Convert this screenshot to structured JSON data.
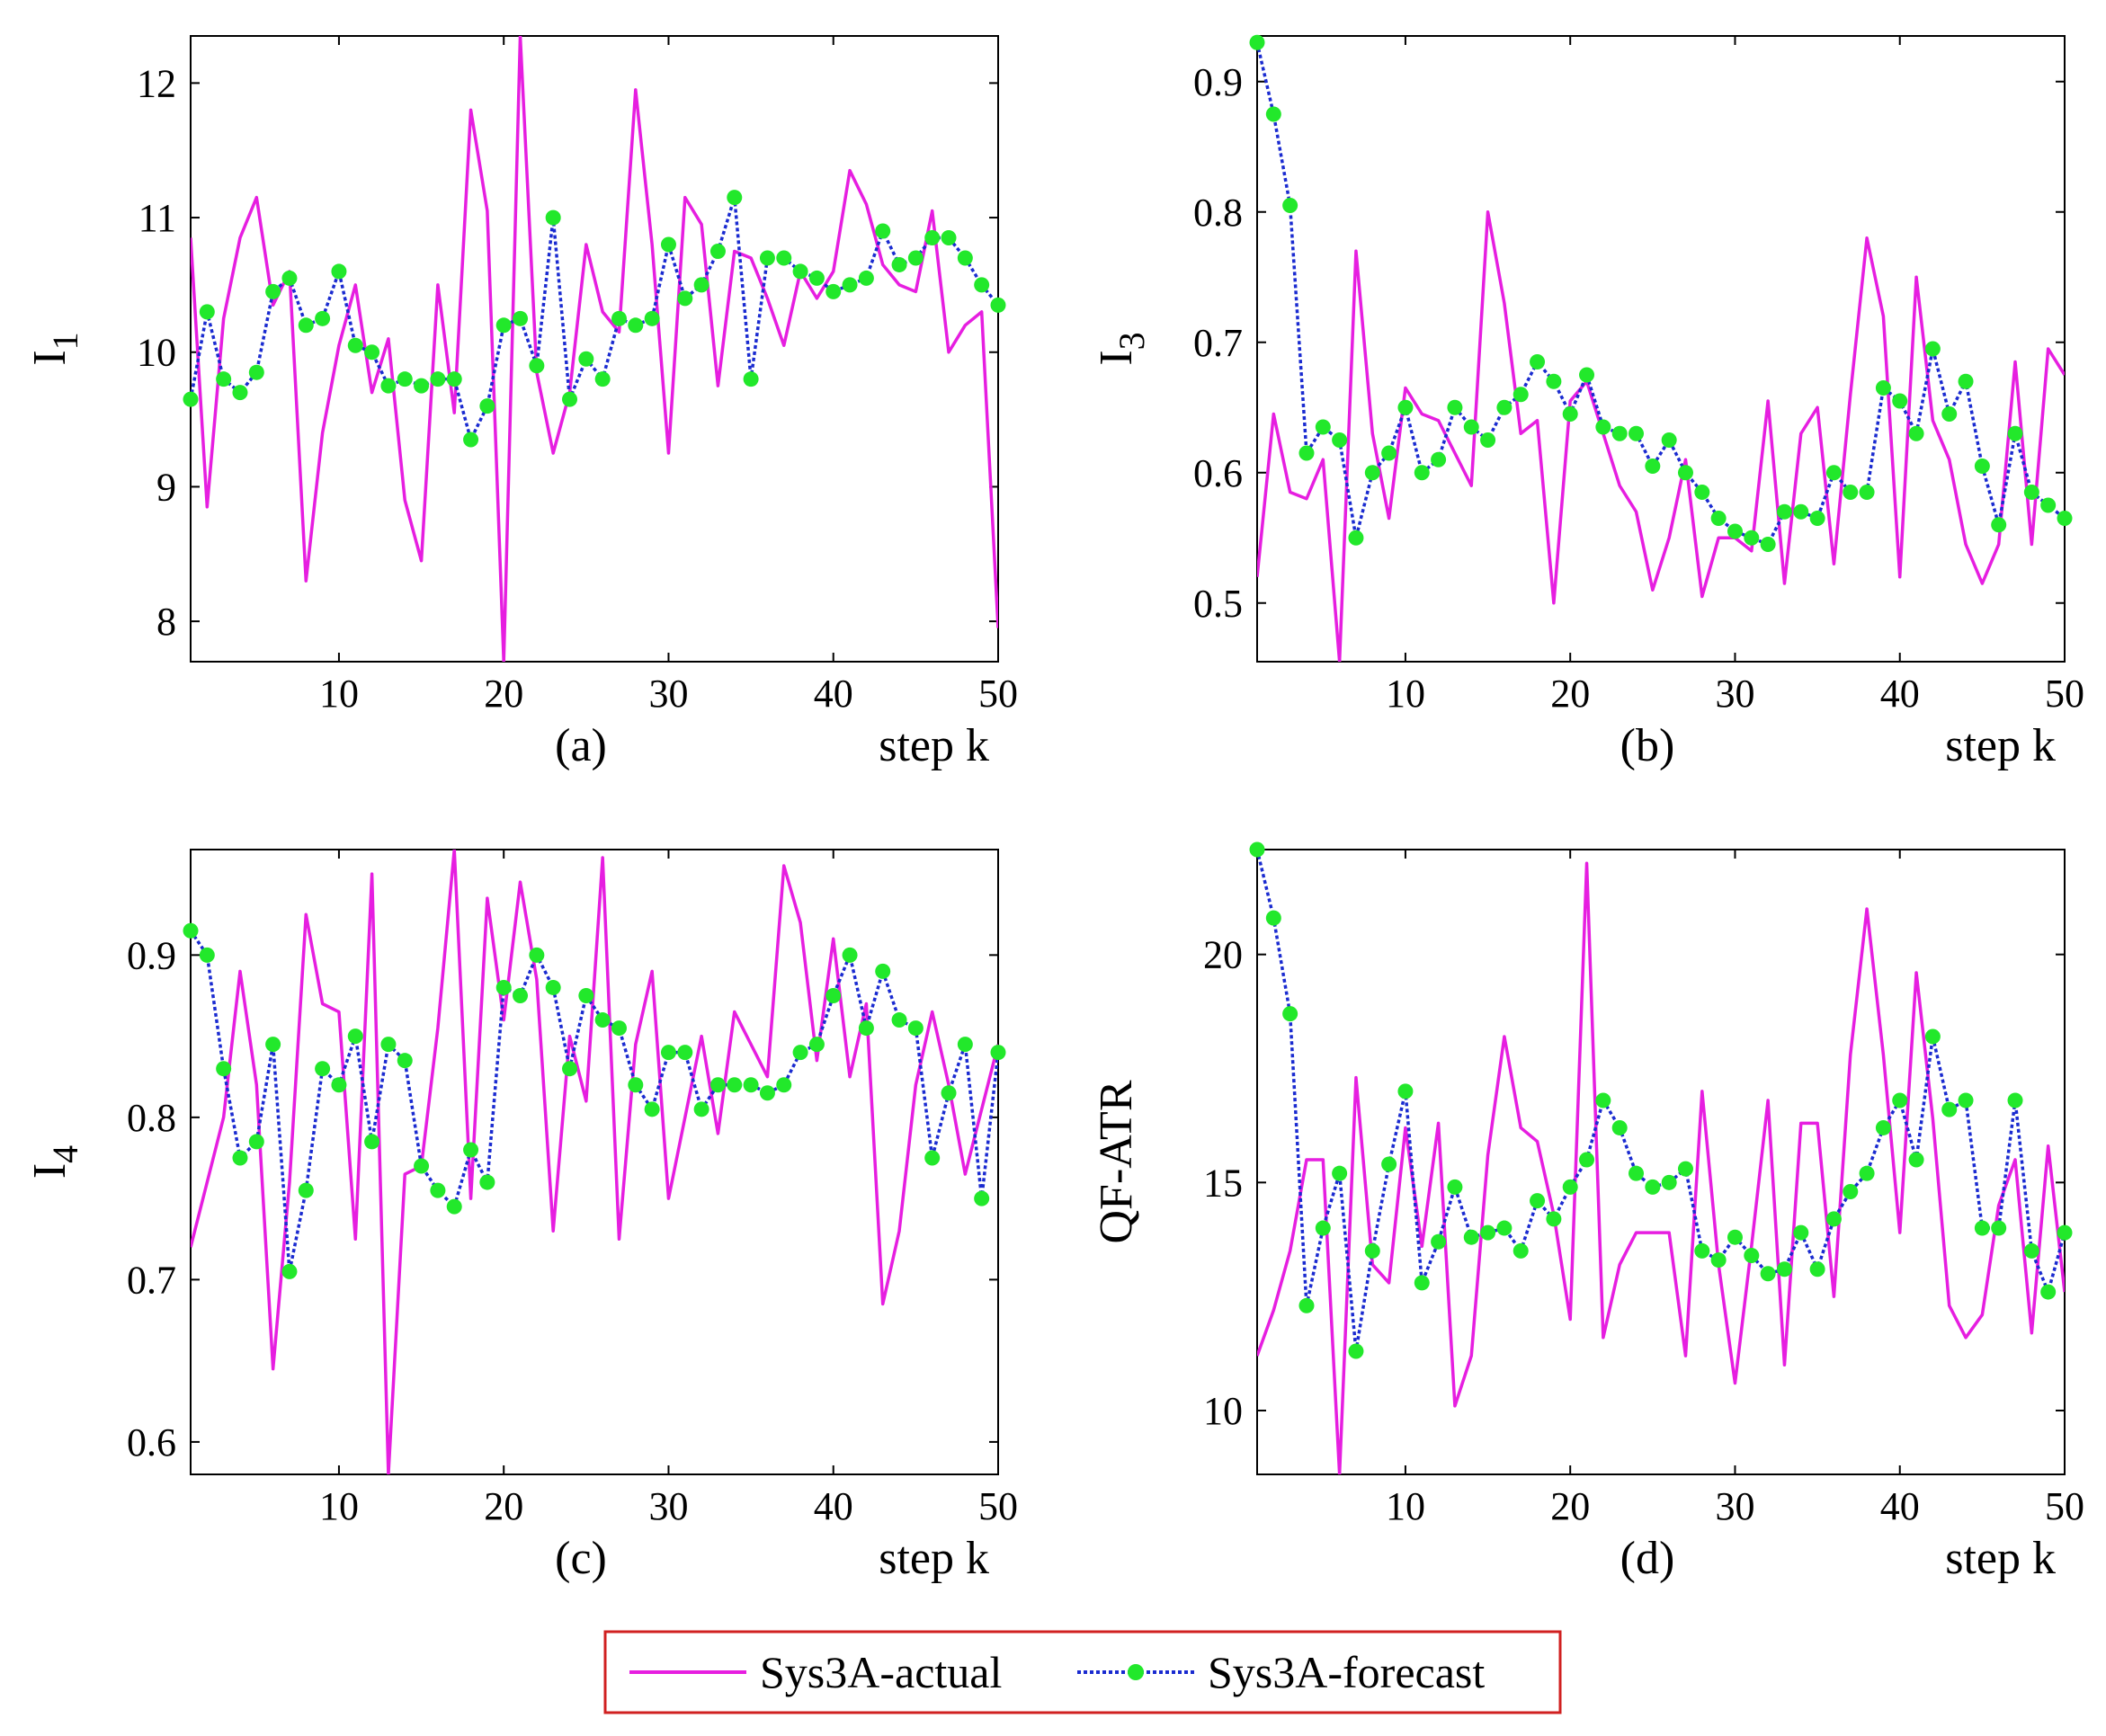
{
  "colors": {
    "actual": "#e61ee0",
    "forecast": "#1a2bd0",
    "marker_fill": "#22e82b",
    "legend_border": "#d02020",
    "axes": "#000000"
  },
  "legend": {
    "actual_label": "Sys3A-actual",
    "forecast_label": "Sys3A-forecast"
  },
  "chart_data": [
    {
      "id": "a",
      "type": "line",
      "caption": "(a)",
      "xlabel": "step k",
      "ylabel": "I",
      "ylabel_sub": "1",
      "xlim": [
        1,
        50
      ],
      "ylim": [
        7.7,
        12.35
      ],
      "xticks": [
        10,
        20,
        30,
        40,
        50
      ],
      "yticks": [
        8,
        9,
        10,
        11,
        12
      ],
      "x": [
        1,
        2,
        3,
        4,
        5,
        6,
        7,
        8,
        9,
        10,
        11,
        12,
        13,
        14,
        15,
        16,
        17,
        18,
        19,
        20,
        21,
        22,
        23,
        24,
        25,
        26,
        27,
        28,
        29,
        30,
        31,
        32,
        33,
        34,
        35,
        36,
        37,
        38,
        39,
        40,
        41,
        42,
        43,
        44,
        45,
        46,
        47,
        48,
        49,
        50
      ],
      "series": [
        {
          "name": "Sys3A-actual",
          "values": [
            10.85,
            8.85,
            10.25,
            10.85,
            11.15,
            10.35,
            10.6,
            8.3,
            9.4,
            10.05,
            10.5,
            9.7,
            10.1,
            8.9,
            8.45,
            10.5,
            9.55,
            11.8,
            11.05,
            7.7,
            12.35,
            9.85,
            9.25,
            9.7,
            10.8,
            10.3,
            10.15,
            11.95,
            10.8,
            9.25,
            11.15,
            10.95,
            9.75,
            10.75,
            10.7,
            10.4,
            10.05,
            10.6,
            10.4,
            10.6,
            11.35,
            11.1,
            10.65,
            10.5,
            10.45,
            11.05,
            10.0,
            10.2,
            10.3,
            7.95
          ]
        },
        {
          "name": "Sys3A-forecast",
          "values": [
            9.65,
            10.3,
            9.8,
            9.7,
            9.85,
            10.45,
            10.55,
            10.2,
            10.25,
            10.6,
            10.05,
            10.0,
            9.75,
            9.8,
            9.75,
            9.8,
            9.8,
            9.35,
            9.6,
            10.2,
            10.25,
            9.9,
            11.0,
            9.65,
            9.95,
            9.8,
            10.25,
            10.2,
            10.25,
            10.8,
            10.4,
            10.5,
            10.75,
            11.15,
            9.8,
            10.7,
            10.7,
            10.6,
            10.55,
            10.45,
            10.5,
            10.55,
            10.9,
            10.65,
            10.7,
            10.85,
            10.85,
            10.7,
            10.5,
            10.35
          ]
        }
      ]
    },
    {
      "id": "b",
      "type": "line",
      "caption": "(b)",
      "xlabel": "step k",
      "ylabel": "I",
      "ylabel_sub": "3",
      "xlim": [
        1,
        50
      ],
      "ylim": [
        0.455,
        0.935
      ],
      "xticks": [
        10,
        20,
        30,
        40,
        50
      ],
      "yticks": [
        0.5,
        0.6,
        0.7,
        0.8,
        0.9
      ],
      "x": [
        1,
        2,
        3,
        4,
        5,
        6,
        7,
        8,
        9,
        10,
        11,
        12,
        13,
        14,
        15,
        16,
        17,
        18,
        19,
        20,
        21,
        22,
        23,
        24,
        25,
        26,
        27,
        28,
        29,
        30,
        31,
        32,
        33,
        34,
        35,
        36,
        37,
        38,
        39,
        40,
        41,
        42,
        43,
        44,
        45,
        46,
        47,
        48,
        49,
        50
      ],
      "series": [
        {
          "name": "Sys3A-actual",
          "values": [
            0.52,
            0.645,
            0.585,
            0.58,
            0.61,
            0.455,
            0.77,
            0.63,
            0.565,
            0.665,
            0.645,
            0.64,
            0.615,
            0.59,
            0.8,
            0.73,
            0.63,
            0.64,
            0.5,
            0.655,
            0.67,
            0.63,
            0.59,
            0.57,
            0.51,
            0.55,
            0.61,
            0.505,
            0.55,
            0.55,
            0.54,
            0.655,
            0.515,
            0.63,
            0.65,
            0.53,
            0.66,
            0.78,
            0.72,
            0.52,
            0.75,
            0.64,
            0.61,
            0.545,
            0.515,
            0.545,
            0.685,
            0.545,
            0.695,
            0.675
          ]
        },
        {
          "name": "Sys3A-forecast",
          "values": [
            0.93,
            0.875,
            0.805,
            0.615,
            0.635,
            0.625,
            0.55,
            0.6,
            0.615,
            0.65,
            0.6,
            0.61,
            0.65,
            0.635,
            0.625,
            0.65,
            0.66,
            0.685,
            0.67,
            0.645,
            0.675,
            0.635,
            0.63,
            0.63,
            0.605,
            0.625,
            0.6,
            0.585,
            0.565,
            0.555,
            0.55,
            0.545,
            0.57,
            0.57,
            0.565,
            0.6,
            0.585,
            0.585,
            0.665,
            0.655,
            0.63,
            0.695,
            0.645,
            0.67,
            0.605,
            0.56,
            0.63,
            0.585,
            0.575,
            0.565
          ]
        }
      ]
    },
    {
      "id": "c",
      "type": "line",
      "caption": "(c)",
      "xlabel": "step k",
      "ylabel": "I",
      "ylabel_sub": "4",
      "xlim": [
        1,
        50
      ],
      "ylim": [
        0.58,
        0.965
      ],
      "xticks": [
        10,
        20,
        30,
        40,
        50
      ],
      "yticks": [
        0.6,
        0.7,
        0.8,
        0.9
      ],
      "x": [
        1,
        2,
        3,
        4,
        5,
        6,
        7,
        8,
        9,
        10,
        11,
        12,
        13,
        14,
        15,
        16,
        17,
        18,
        19,
        20,
        21,
        22,
        23,
        24,
        25,
        26,
        27,
        28,
        29,
        30,
        31,
        32,
        33,
        34,
        35,
        36,
        37,
        38,
        39,
        40,
        41,
        42,
        43,
        44,
        45,
        46,
        47,
        48,
        49,
        50
      ],
      "series": [
        {
          "name": "Sys3A-actual",
          "values": [
            0.72,
            0.76,
            0.8,
            0.89,
            0.82,
            0.645,
            0.76,
            0.925,
            0.87,
            0.865,
            0.725,
            0.95,
            0.58,
            0.765,
            0.77,
            0.855,
            0.965,
            0.75,
            0.935,
            0.86,
            0.945,
            0.885,
            0.73,
            0.85,
            0.81,
            0.96,
            0.725,
            0.845,
            0.89,
            0.75,
            0.8,
            0.85,
            0.79,
            0.865,
            0.845,
            0.825,
            0.955,
            0.92,
            0.835,
            0.91,
            0.825,
            0.87,
            0.685,
            0.73,
            0.82,
            0.865,
            0.82,
            0.765,
            0.805,
            0.845
          ]
        },
        {
          "name": "Sys3A-forecast",
          "values": [
            0.915,
            0.9,
            0.83,
            0.775,
            0.785,
            0.845,
            0.705,
            0.755,
            0.83,
            0.82,
            0.85,
            0.785,
            0.845,
            0.835,
            0.77,
            0.755,
            0.745,
            0.78,
            0.76,
            0.88,
            0.875,
            0.9,
            0.88,
            0.83,
            0.875,
            0.86,
            0.855,
            0.82,
            0.805,
            0.84,
            0.84,
            0.805,
            0.82,
            0.82,
            0.82,
            0.815,
            0.82,
            0.84,
            0.845,
            0.875,
            0.9,
            0.855,
            0.89,
            0.86,
            0.855,
            0.775,
            0.815,
            0.845,
            0.75,
            0.84
          ]
        }
      ]
    },
    {
      "id": "d",
      "type": "line",
      "caption": "(d)",
      "xlabel": "step k",
      "ylabel": "QF-ATR",
      "ylabel_sub": "",
      "xlim": [
        1,
        50
      ],
      "ylim": [
        8.6,
        22.3
      ],
      "xticks": [
        10,
        20,
        30,
        40,
        50
      ],
      "yticks": [
        10,
        15,
        20
      ],
      "x": [
        1,
        2,
        3,
        4,
        5,
        6,
        7,
        8,
        9,
        10,
        11,
        12,
        13,
        14,
        15,
        16,
        17,
        18,
        19,
        20,
        21,
        22,
        23,
        24,
        25,
        26,
        27,
        28,
        29,
        30,
        31,
        32,
        33,
        34,
        35,
        36,
        37,
        38,
        39,
        40,
        41,
        42,
        43,
        44,
        45,
        46,
        47,
        48,
        49,
        50
      ],
      "series": [
        {
          "name": "Sys3A-actual",
          "values": [
            11.2,
            12.2,
            13.5,
            15.5,
            15.5,
            8.6,
            17.3,
            13.2,
            12.8,
            16.2,
            13.6,
            16.3,
            10.1,
            11.2,
            15.6,
            18.2,
            16.2,
            15.9,
            14.3,
            12.0,
            22.0,
            11.6,
            13.2,
            13.9,
            13.9,
            13.9,
            11.2,
            17.0,
            13.2,
            10.6,
            13.6,
            16.8,
            11.0,
            16.3,
            16.3,
            12.5,
            17.8,
            21.0,
            17.8,
            13.9,
            19.6,
            16.4,
            12.3,
            11.6,
            12.1,
            14.5,
            15.5,
            11.7,
            15.8,
            12.6
          ]
        },
        {
          "name": "Sys3A-forecast",
          "values": [
            22.3,
            20.8,
            18.7,
            12.3,
            14.0,
            15.2,
            11.3,
            13.5,
            15.4,
            17.0,
            12.8,
            13.7,
            14.9,
            13.8,
            13.9,
            14.0,
            13.5,
            14.6,
            14.2,
            14.9,
            15.5,
            16.8,
            16.2,
            15.2,
            14.9,
            15.0,
            15.3,
            13.5,
            13.3,
            13.8,
            13.4,
            13.0,
            13.1,
            13.9,
            13.1,
            14.2,
            14.8,
            15.2,
            16.2,
            16.8,
            15.5,
            18.2,
            16.6,
            16.8,
            14.0,
            14.0,
            16.8,
            13.5,
            12.6,
            13.9
          ]
        }
      ]
    }
  ]
}
